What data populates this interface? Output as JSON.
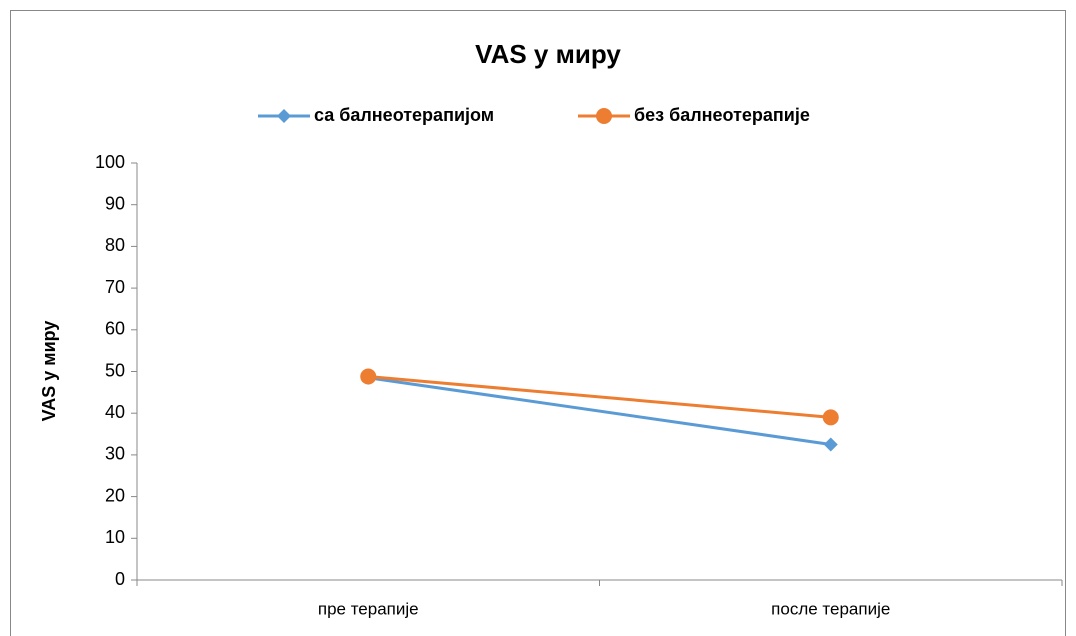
{
  "chart_data": {
    "type": "line",
    "title": "VAS у миру",
    "y_label": "VAS  у миру",
    "categories": [
      "пре терапије",
      "после терапије"
    ],
    "series": [
      {
        "name": "са балнеотерапијом",
        "color": "#5b9bd5",
        "marker": "diamond",
        "values": [
          48.5,
          32.5
        ]
      },
      {
        "name": "без балнеотерапије",
        "color": "#ed7d31",
        "marker": "circle",
        "values": [
          48.8,
          39.0
        ]
      }
    ],
    "ylim": [
      0,
      100
    ],
    "yticks": [
      0,
      10,
      20,
      30,
      40,
      50,
      60,
      70,
      80,
      90,
      100
    ],
    "grid": false,
    "legend": "top"
  }
}
